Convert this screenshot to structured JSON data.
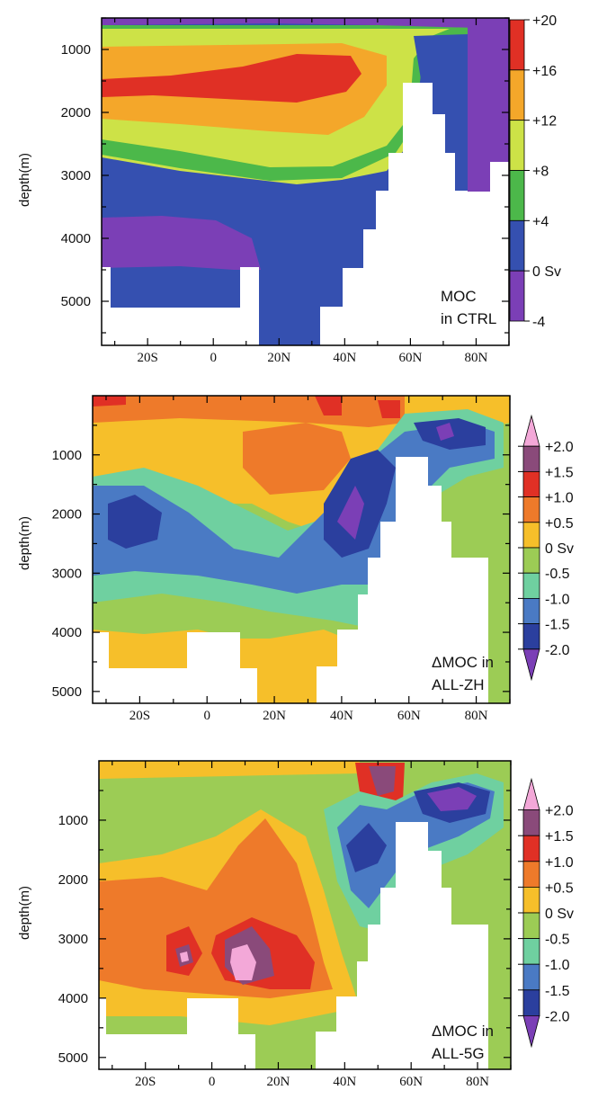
{
  "colors": {
    "moc_ctrl_levels": [
      "#7b3fb6",
      "#3550b0",
      "#4cb84a",
      "#cde247",
      "#f4a72a",
      "#e03025"
    ],
    "delta_levels": [
      "#7b3fb6",
      "#2b3f9e",
      "#4a7ac4",
      "#6fd0a0",
      "#9ccc55",
      "#f6bf2a",
      "#ee7a2a",
      "#e03025",
      "#8a4a7a",
      "#f3a8d8"
    ],
    "frame": "#000000",
    "background": "#ffffff"
  },
  "chart_data": [
    {
      "type": "heatmap",
      "ylabel": "depth(m)",
      "xlabel": "",
      "x_tick_labels": [
        "20S",
        "0",
        "20N",
        "40N",
        "60N",
        "80N"
      ],
      "x_ticks": [
        -20,
        0,
        20,
        40,
        60,
        80
      ],
      "xlim": [
        -34,
        90
      ],
      "y_tick_labels": [
        "1000",
        "2000",
        "3000",
        "4000",
        "5000"
      ],
      "y_ticks": [
        1000,
        2000,
        3000,
        4000,
        5000
      ],
      "ylim": [
        500,
        5700
      ],
      "y_inverted": true,
      "annotation": [
        "MOC",
        "in CTRL"
      ],
      "colorbar": {
        "labels": [
          "+20",
          "+16",
          "+12",
          "+8",
          "+4",
          "0 Sv",
          "-4"
        ],
        "levels": [
          20,
          16,
          12,
          8,
          4,
          0,
          -4
        ]
      },
      "field": [
        {
          "x": -34,
          "y": 500,
          "value": 8
        },
        {
          "x": -20,
          "y": 1000,
          "value": 12
        },
        {
          "x": 10,
          "y": 1300,
          "value": 17
        },
        {
          "x": 30,
          "y": 1200,
          "value": 17
        },
        {
          "x": -30,
          "y": 1500,
          "value": 17
        },
        {
          "x": 10,
          "y": 2500,
          "value": 10
        },
        {
          "x": 0,
          "y": 3200,
          "value": 5
        },
        {
          "x": 0,
          "y": 3700,
          "value": 1
        },
        {
          "x": -20,
          "y": 4300,
          "value": -2
        },
        {
          "x": 20,
          "y": 5200,
          "value": 1
        },
        {
          "x": 55,
          "y": 1200,
          "value": 9
        },
        {
          "x": 75,
          "y": 2000,
          "value": 1
        }
      ]
    },
    {
      "type": "heatmap",
      "ylabel": "depth(m)",
      "xlabel": "",
      "x_tick_labels": [
        "20S",
        "0",
        "20N",
        "40N",
        "60N",
        "80N"
      ],
      "x_ticks": [
        -20,
        0,
        20,
        40,
        60,
        80
      ],
      "xlim": [
        -34,
        90
      ],
      "y_tick_labels": [
        "1000",
        "2000",
        "3000",
        "4000",
        "5000"
      ],
      "y_ticks": [
        1000,
        2000,
        3000,
        4000,
        5000
      ],
      "ylim": [
        0,
        5200
      ],
      "y_inverted": true,
      "annotation": [
        "ΔMOC in",
        "ALL-ZH"
      ],
      "colorbar": {
        "labels": [
          "+2.0",
          "+1.5",
          "+1.0",
          "+0.5",
          "0 Sv",
          "-0.5",
          "-1.0",
          "-1.5",
          "-2.0"
        ],
        "levels": [
          2.0,
          1.5,
          1.0,
          0.5,
          0,
          -0.5,
          -1.0,
          -1.5,
          -2.0
        ],
        "extend": "both"
      },
      "field": [
        {
          "x": 20,
          "y": 700,
          "value": 0.6
        },
        {
          "x": 40,
          "y": 200,
          "value": 1.2
        },
        {
          "x": 55,
          "y": 200,
          "value": 1.2
        },
        {
          "x": -20,
          "y": 2000,
          "value": -1.7
        },
        {
          "x": 40,
          "y": 1800,
          "value": -2.0
        },
        {
          "x": 10,
          "y": 2700,
          "value": -1.3
        },
        {
          "x": 70,
          "y": 500,
          "value": -1.8
        },
        {
          "x": 0,
          "y": 3800,
          "value": -0.4
        },
        {
          "x": 10,
          "y": 4800,
          "value": 0.2
        }
      ]
    },
    {
      "type": "heatmap",
      "ylabel": "depth(m)",
      "xlabel": "",
      "x_tick_labels": [
        "20S",
        "0",
        "20N",
        "40N",
        "60N",
        "80N"
      ],
      "x_ticks": [
        -20,
        0,
        20,
        40,
        60,
        80
      ],
      "xlim": [
        -34,
        90
      ],
      "y_tick_labels": [
        "1000",
        "2000",
        "3000",
        "4000",
        "5000"
      ],
      "y_ticks": [
        1000,
        2000,
        3000,
        4000,
        5000
      ],
      "ylim": [
        0,
        5200
      ],
      "y_inverted": true,
      "annotation": [
        "ΔMOC in",
        "ALL-5G"
      ],
      "colorbar": {
        "labels": [
          "+2.0",
          "+1.5",
          "+1.0",
          "+0.5",
          "0 Sv",
          "-0.5",
          "-1.0",
          "-1.5",
          "-2.0"
        ],
        "levels": [
          2.0,
          1.5,
          1.0,
          0.5,
          0,
          -0.5,
          -1.0,
          -1.5,
          -2.0
        ],
        "extend": "both"
      },
      "field": [
        {
          "x": -20,
          "y": 2000,
          "value": 0.7
        },
        {
          "x": 10,
          "y": 3200,
          "value": 1.8
        },
        {
          "x": -6,
          "y": 3300,
          "value": 1.6
        },
        {
          "x": 25,
          "y": 3300,
          "value": 1.2
        },
        {
          "x": 45,
          "y": 1500,
          "value": -1.0
        },
        {
          "x": 70,
          "y": 600,
          "value": -1.8
        },
        {
          "x": 52,
          "y": 300,
          "value": 1.5
        },
        {
          "x": -20,
          "y": 4300,
          "value": -0.3
        }
      ]
    }
  ]
}
